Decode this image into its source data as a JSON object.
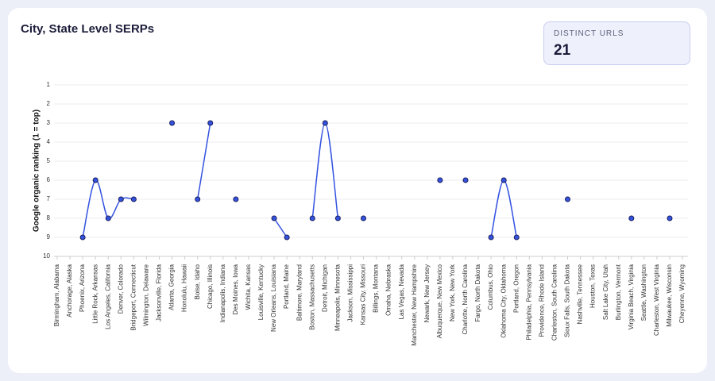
{
  "kpi": {
    "label": "DISTINCT URLS",
    "value": 21
  },
  "chart_data": {
    "type": "line",
    "title": "City, State Level SERPs",
    "y_label": "Google organic ranking (1 = top)",
    "y_inverted": true,
    "ylim": [
      1,
      10
    ],
    "yticks": [
      1,
      2,
      3,
      4,
      5,
      6,
      7,
      8,
      9,
      10
    ],
    "grid": true,
    "categories": [
      "Birmingham, Alabama",
      "Anchorage, Alaska",
      "Phoenix, Arizona",
      "Little Rock, Arkansas",
      "Los Angeles, California",
      "Denver, Colorado",
      "Bridgeport, Connecticut",
      "Wilmington, Delaware",
      "Jacksonville, Florida",
      "Atlanta, Georgia",
      "Honolulu, Hawaii",
      "Boise, Idaho",
      "Chicago, Illinois",
      "Indianapolis, Indiana",
      "Des Moines, Iowa",
      "Wichita, Kansas",
      "Louisville, Kentucky",
      "New Orleans, Louisiana",
      "Portland, Maine",
      "Baltimore, Maryland",
      "Boston, Massachusetts",
      "Detroit, Michigan",
      "Minneapolis, Minnesota",
      "Jackson, Mississippi",
      "Kansas City, Missouri",
      "Billings, Montana",
      "Omaha, Nebraska",
      "Las Vegas, Nevada",
      "Manchester, New Hampshire",
      "Newark, New Jersey",
      "Albuquerque, New Mexico",
      "New York, New York",
      "Charlotte, North Carolina",
      "Fargo, North Dakota",
      "Columbus, Ohio",
      "Oklahoma City, Oklahoma",
      "Portland, Oregon",
      "Philadelphia, Pennsylvania",
      "Providence, Rhode Island",
      "Charleston, South Carolina",
      "Sioux Falls, South Dakota",
      "Nashville, Tennessee",
      "Houston, Texas",
      "Salt Lake City, Utah",
      "Burlington, Vermont",
      "Virginia Beach, Virginia",
      "Seattle, Washington",
      "Charleston, West Virginia",
      "Milwaukee, Wisconsin",
      "Cheyenne, Wyoming"
    ],
    "series": [
      {
        "color": "#3352e0",
        "values": [
          null,
          null,
          9,
          6,
          8,
          7,
          7,
          null,
          null,
          3,
          null,
          7,
          3,
          null,
          7,
          null,
          null,
          8,
          9,
          null,
          8,
          3,
          8,
          null,
          8,
          null,
          null,
          null,
          null,
          null,
          6,
          null,
          6,
          null,
          9,
          6,
          9,
          null,
          null,
          null,
          7,
          null,
          null,
          null,
          null,
          8,
          null,
          null,
          8,
          null
        ]
      }
    ]
  }
}
